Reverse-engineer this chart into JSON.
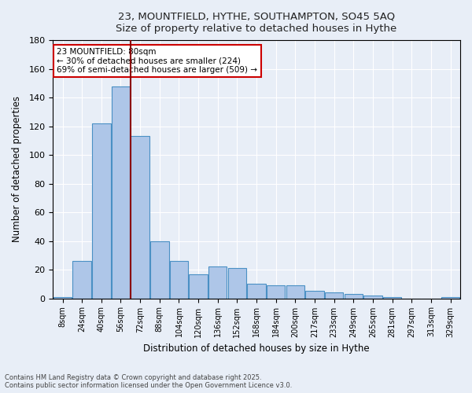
{
  "title": "23, MOUNTFIELD, HYTHE, SOUTHAMPTON, SO45 5AQ",
  "subtitle": "Size of property relative to detached houses in Hythe",
  "xlabel": "Distribution of detached houses by size in Hythe",
  "ylabel": "Number of detached properties",
  "categories": [
    "8sqm",
    "24sqm",
    "40sqm",
    "56sqm",
    "72sqm",
    "88sqm",
    "104sqm",
    "120sqm",
    "136sqm",
    "152sqm",
    "168sqm",
    "184sqm",
    "200sqm",
    "217sqm",
    "233sqm",
    "249sqm",
    "265sqm",
    "281sqm",
    "297sqm",
    "313sqm",
    "329sqm"
  ],
  "values": [
    1,
    26,
    122,
    148,
    113,
    40,
    26,
    17,
    22,
    21,
    10,
    9,
    9,
    5,
    4,
    3,
    2,
    1,
    0,
    0,
    1
  ],
  "bar_color": "#aec6e8",
  "bar_edge_color": "#4a90c4",
  "vline_color": "#8b0000",
  "annotation_line1": "23 MOUNTFIELD: 80sqm",
  "annotation_line2": "← 30% of detached houses are smaller (224)",
  "annotation_line3": "69% of semi-detached houses are larger (509) →",
  "annotation_box_color": "#ffffff",
  "annotation_box_edge": "#cc0000",
  "ylim": [
    0,
    180
  ],
  "yticks": [
    0,
    20,
    40,
    60,
    80,
    100,
    120,
    140,
    160,
    180
  ],
  "footnote": "Contains HM Land Registry data © Crown copyright and database right 2025.\nContains public sector information licensed under the Open Government Licence v3.0.",
  "background_color": "#e8eef7",
  "grid_color": "#ffffff"
}
